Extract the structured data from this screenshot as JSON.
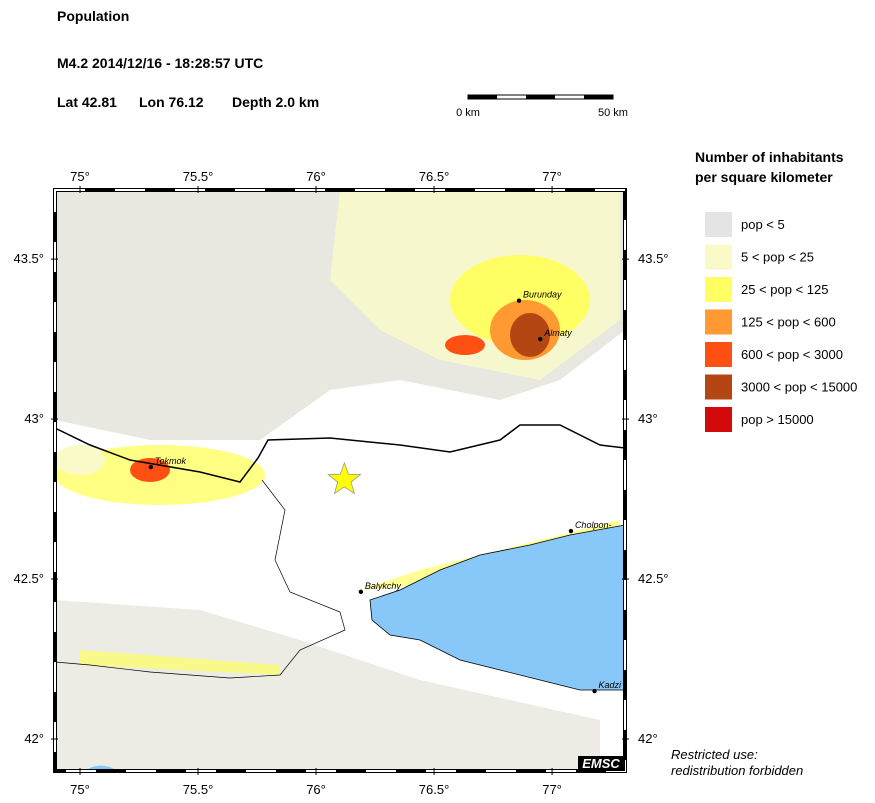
{
  "header": {
    "title": "Population",
    "event": "M4.2  2014/12/16 - 18:28:57 UTC",
    "lat": {
      "value": 42.81,
      "label": "Lat 42.81"
    },
    "lon": {
      "value": 76.12,
      "label": "Lon  76.12"
    },
    "depth": "Depth  2.0 km"
  },
  "scale": {
    "start": "0 km",
    "end": "50 km"
  },
  "map": {
    "xlim": [
      74.894,
      77.309
    ],
    "ylim": [
      41.9,
      43.716
    ],
    "xticks": [
      {
        "value": 75,
        "label": "75°"
      },
      {
        "value": 75.5,
        "label": "75.5°"
      },
      {
        "value": 76,
        "label": "76°"
      },
      {
        "value": 76.5,
        "label": "76.5°"
      },
      {
        "value": 77,
        "label": "77°"
      }
    ],
    "yticks": [
      {
        "value": 42,
        "label": "42°"
      },
      {
        "value": 42.5,
        "label": "42.5°"
      },
      {
        "value": 43,
        "label": "43°"
      },
      {
        "value": 43.5,
        "label": "43.5°"
      }
    ],
    "cities": [
      {
        "name": "Burunday",
        "lon": 76.86,
        "lat": 43.37
      },
      {
        "name": "Almaty",
        "lon": 76.95,
        "lat": 43.25
      },
      {
        "name": "Tokmok",
        "lon": 75.3,
        "lat": 42.85
      },
      {
        "name": "Balykchy",
        "lon": 76.19,
        "lat": 42.46
      },
      {
        "name": "Cholpon-",
        "lon": 77.08,
        "lat": 42.65
      },
      {
        "name": "Kadzi",
        "lon": 77.18,
        "lat": 42.15
      }
    ],
    "credit": "EMSC"
  },
  "legend": {
    "title": [
      "Number of inhabitants",
      "per square kilometer"
    ],
    "items": [
      {
        "label": "pop < 5",
        "color": "#e4e4e4"
      },
      {
        "label": "5 < pop < 25",
        "color": "#fafac8"
      },
      {
        "label": "25 < pop < 125",
        "color": "#ffff64"
      },
      {
        "label": "125 < pop < 600",
        "color": "#ff9a32"
      },
      {
        "label": "600 < pop < 3000",
        "color": "#ff5014"
      },
      {
        "label": "3000 < pop < 15000",
        "color": "#b44614"
      },
      {
        "label": "pop > 15000",
        "color": "#d20a0a"
      }
    ]
  },
  "note": [
    "Restricted use:",
    "redistribution forbidden"
  ]
}
